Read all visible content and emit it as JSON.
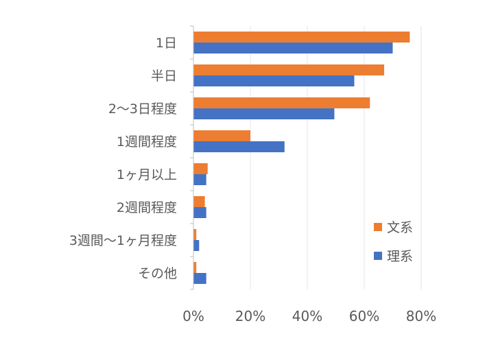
{
  "chart_data": {
    "type": "bar",
    "orientation": "horizontal",
    "categories": [
      "1日",
      "半日",
      "2～3日程度",
      "1週間程度",
      "1ヶ月以上",
      "2週間程度",
      "3週間～1ヶ月程度",
      "その他"
    ],
    "series": [
      {
        "name": "文系",
        "color": "#ED7D31",
        "values": [
          76,
          67,
          62,
          20,
          5,
          4,
          1,
          1
        ]
      },
      {
        "name": "理系",
        "color": "#4472C4",
        "values": [
          70,
          56.5,
          49.5,
          32,
          4.5,
          4.5,
          2,
          4.5
        ]
      }
    ],
    "xlim": [
      0,
      80
    ],
    "x_ticks": [
      "0%",
      "20%",
      "40%",
      "60%",
      "80%"
    ],
    "grid": true,
    "legend_position": "right"
  }
}
